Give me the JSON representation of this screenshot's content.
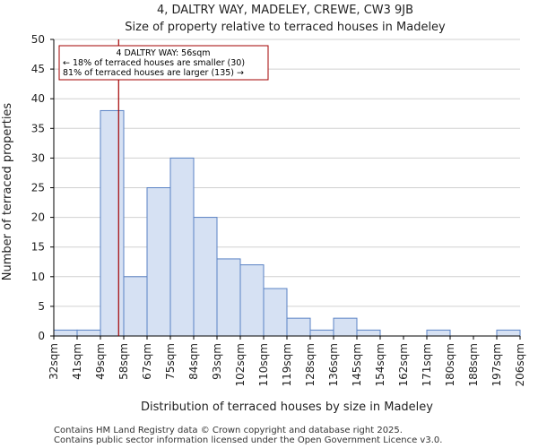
{
  "chart_data": {
    "type": "bar",
    "title_line1": "4, DALTRY WAY, MADELEY, CREWE, CW3 9JB",
    "title_line2": "Size of property relative to terraced houses in Madeley",
    "xlabel": "Distribution of terraced houses by size in Madeley",
    "ylabel": "Number of terraced properties",
    "ylim": [
      0,
      50
    ],
    "yticks": [
      0,
      5,
      10,
      15,
      20,
      25,
      30,
      35,
      40,
      45,
      50
    ],
    "grid": true,
    "bin_edges": [
      "32sqm",
      "41sqm",
      "49sqm",
      "58sqm",
      "67sqm",
      "75sqm",
      "84sqm",
      "93sqm",
      "102sqm",
      "110sqm",
      "119sqm",
      "128sqm",
      "136sqm",
      "145sqm",
      "154sqm",
      "162sqm",
      "171sqm",
      "180sqm",
      "188sqm",
      "197sqm",
      "206sqm"
    ],
    "values": [
      1,
      1,
      38,
      10,
      25,
      30,
      20,
      13,
      12,
      8,
      3,
      1,
      3,
      1,
      0,
      0,
      1,
      0,
      0,
      1
    ],
    "marker_bin_position": 2.78,
    "annotation": {
      "line1": "4 DALTRY WAY: 56sqm",
      "line2": "← 18% of terraced houses are smaller (30)",
      "line3": "81% of terraced houses are larger (135) →"
    },
    "colors": {
      "bar_fill": "#d6e1f3",
      "bar_edge": "#5a82c4",
      "marker": "#a30000"
    }
  },
  "footer": {
    "line1": "Contains HM Land Registry data © Crown copyright and database right 2025.",
    "line2": "Contains public sector information licensed under the Open Government Licence v3.0."
  }
}
